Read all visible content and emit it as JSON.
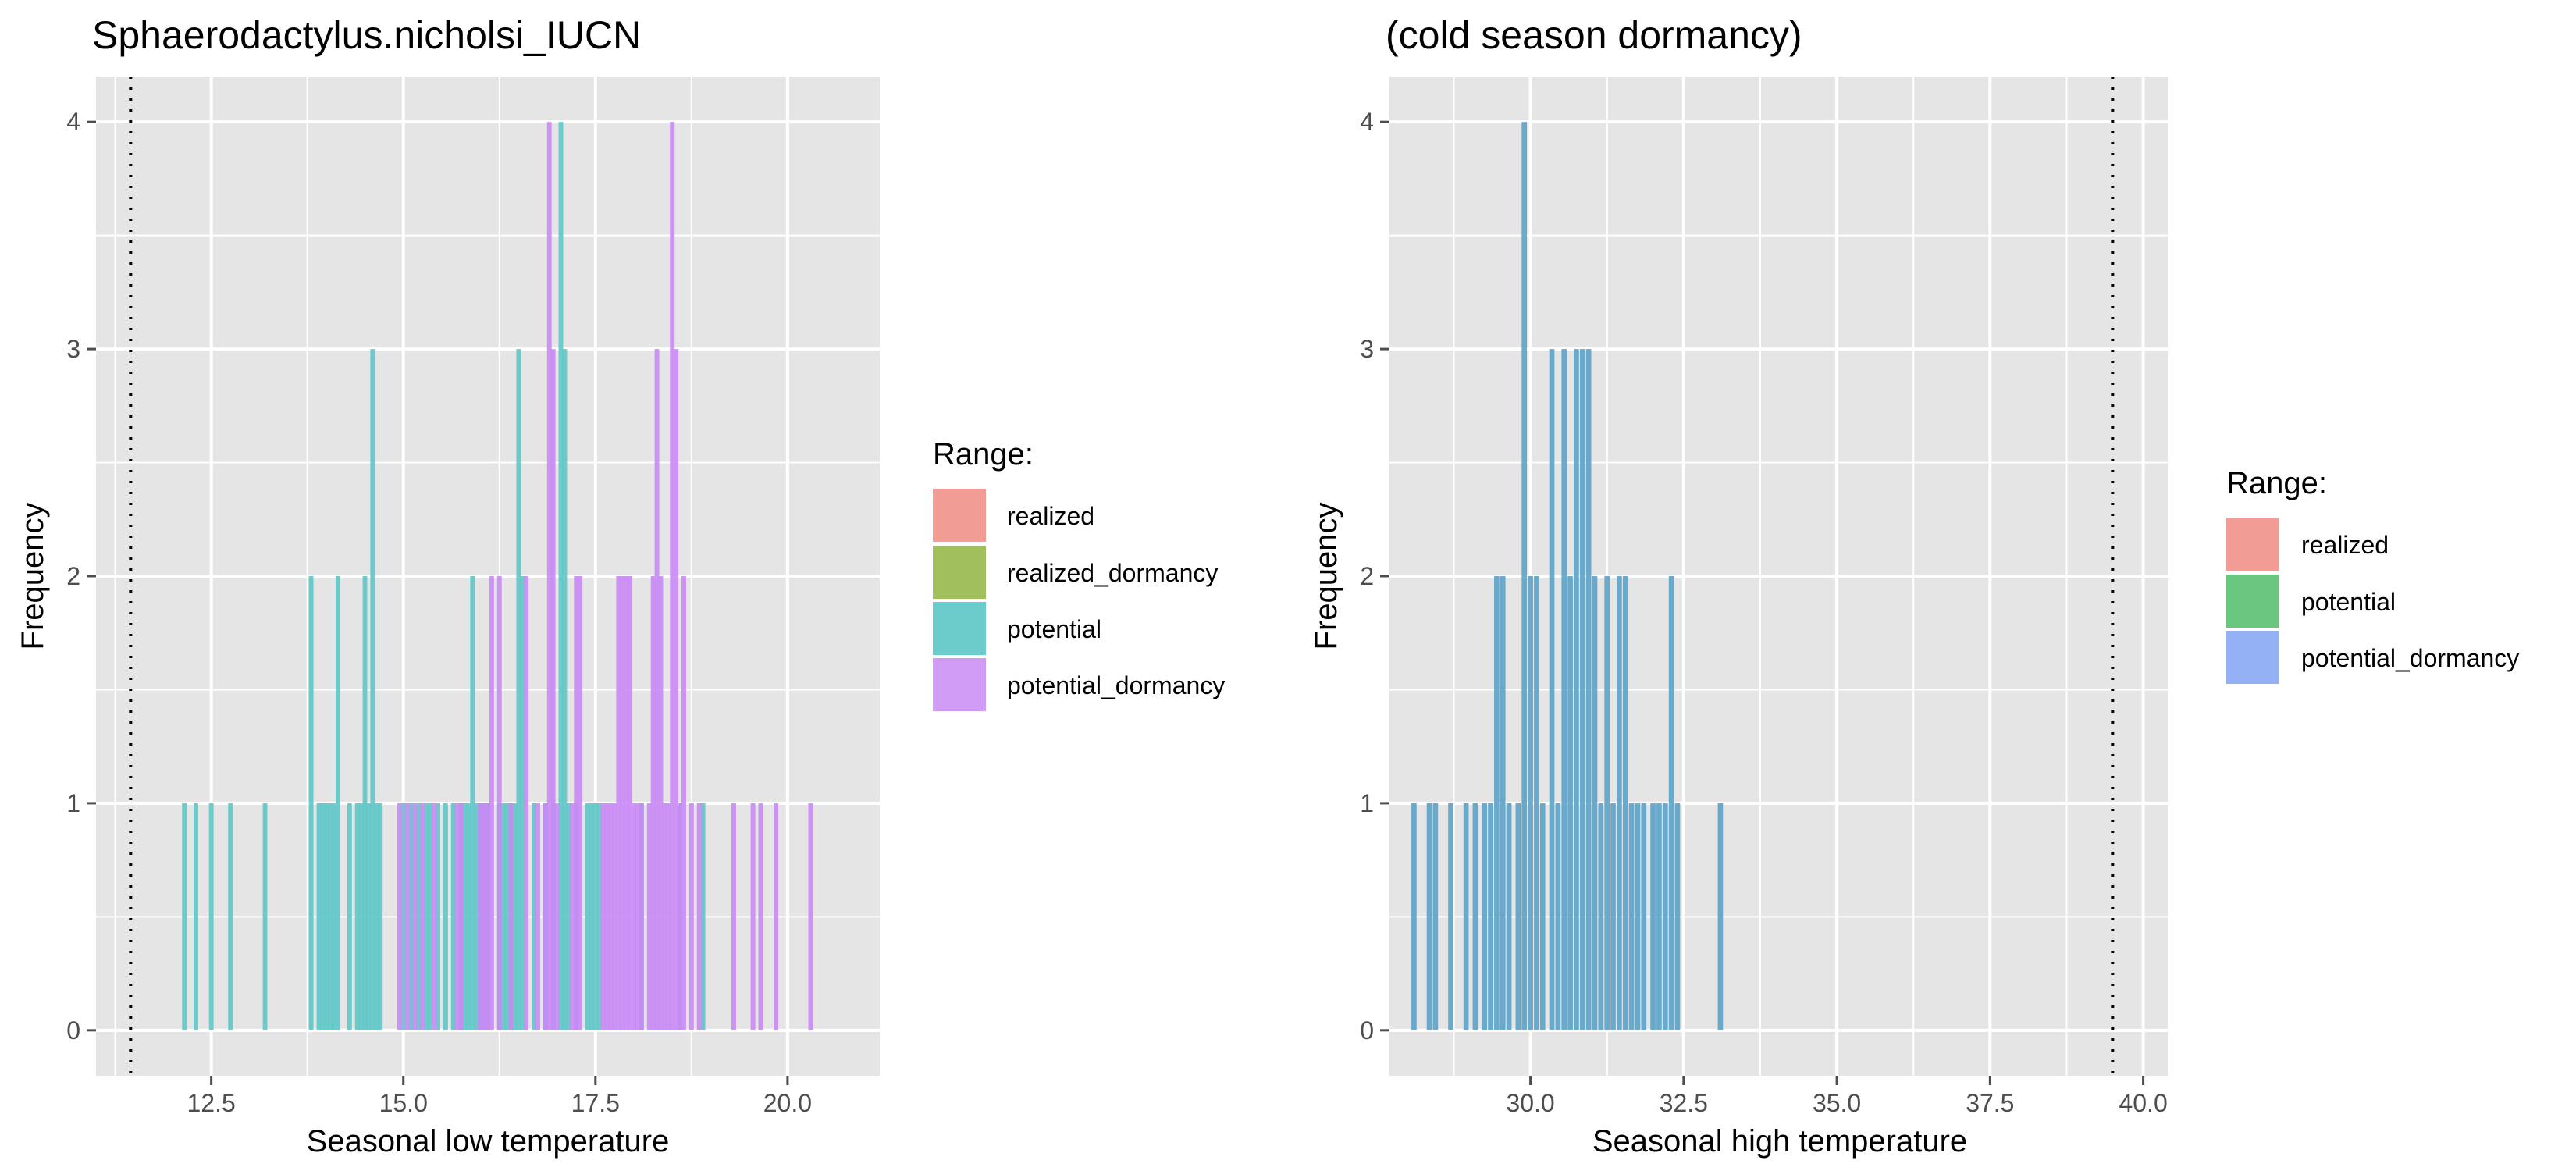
{
  "colors": {
    "panel_bg": "#e5e5e5",
    "grid": "#ffffff",
    "tick": "#4d4d4d",
    "realized": "#f08c87",
    "realized_dormancy": "#93b84f",
    "potential": "#5ec7c7",
    "potential_dormancy": "#c98af5",
    "right_potential": "#5fbf73",
    "right_potential_dormancy": "#8fb0f5",
    "right_bars": "#5ba2c9"
  },
  "chart_data": [
    {
      "type": "bar",
      "title": "Sphaerodactylus.nicholsi_IUCN",
      "xlabel": "Seasonal low temperature",
      "ylabel": "Frequency",
      "xlim": [
        11.0,
        21.2
      ],
      "ylim": [
        -0.2,
        4.2
      ],
      "x_ticks": [
        12.5,
        15.0,
        17.5,
        20.0
      ],
      "x_tick_labels": [
        "12.5",
        "15.0",
        "17.5",
        "20.0"
      ],
      "y_ticks": [
        0,
        1,
        2,
        3,
        4
      ],
      "y_tick_labels": [
        "0",
        "1",
        "2",
        "3",
        "4"
      ],
      "grid": true,
      "bin_width": 0.06,
      "vline": 11.45,
      "legend": {
        "title": "Range:",
        "position": "right",
        "entries": [
          "realized",
          "realized_dormancy",
          "potential",
          "potential_dormancy"
        ]
      },
      "series": [
        {
          "name": "potential",
          "color_key": "potential",
          "x": [
            12.15,
            12.3,
            12.5,
            12.75,
            13.2,
            13.8,
            13.9,
            13.95,
            14.0,
            14.05,
            14.1,
            14.15,
            14.3,
            14.4,
            14.45,
            14.5,
            14.55,
            14.6,
            14.65,
            14.7,
            15.0,
            15.1,
            15.2,
            15.3,
            15.35,
            15.45,
            15.55,
            15.65,
            15.75,
            15.8,
            15.85,
            15.9,
            15.95,
            16.0,
            16.05,
            16.1,
            16.25,
            16.3,
            16.35,
            16.4,
            16.45,
            16.5,
            16.55,
            16.7,
            16.85,
            16.95,
            17.05,
            17.1,
            17.15,
            17.25,
            17.4,
            17.45,
            17.5,
            17.55,
            18.1,
            18.6,
            18.9
          ],
          "values": [
            1,
            1,
            1,
            1,
            1,
            2,
            1,
            1,
            1,
            1,
            1,
            2,
            1,
            1,
            1,
            2,
            1,
            3,
            1,
            1,
            1,
            1,
            1,
            1,
            1,
            1,
            1,
            1,
            1,
            1,
            1,
            2,
            1,
            1,
            1,
            1,
            1,
            1,
            1,
            1,
            1,
            3,
            2,
            1,
            1,
            1,
            4,
            3,
            1,
            1,
            1,
            1,
            1,
            1,
            1,
            1,
            1
          ]
        },
        {
          "name": "potential_dormancy",
          "color_key": "potential_dormancy",
          "x": [
            14.95,
            15.05,
            15.15,
            15.25,
            15.4,
            15.7,
            15.75,
            16.0,
            16.05,
            16.1,
            16.15,
            16.25,
            16.4,
            16.6,
            16.75,
            16.85,
            16.9,
            16.95,
            17.0,
            17.2,
            17.25,
            17.3,
            17.6,
            17.65,
            17.7,
            17.75,
            17.8,
            17.85,
            17.9,
            17.95,
            18.0,
            18.05,
            18.1,
            18.2,
            18.25,
            18.3,
            18.35,
            18.4,
            18.45,
            18.5,
            18.55,
            18.6,
            18.65,
            18.75,
            18.85,
            19.3,
            19.55,
            19.65,
            19.85,
            20.3
          ],
          "values": [
            1,
            1,
            1,
            1,
            1,
            1,
            1,
            1,
            1,
            1,
            2,
            2,
            1,
            2,
            1,
            1,
            4,
            3,
            1,
            1,
            2,
            2,
            1,
            1,
            1,
            1,
            2,
            2,
            2,
            2,
            1,
            1,
            1,
            1,
            2,
            3,
            2,
            1,
            1,
            4,
            3,
            1,
            2,
            1,
            1,
            1,
            1,
            1,
            1,
            1
          ]
        }
      ]
    },
    {
      "type": "bar",
      "title": "(cold season dormancy)",
      "xlabel": "Seasonal high temperature",
      "ylabel": "Frequency",
      "xlim": [
        27.7,
        40.4
      ],
      "ylim": [
        -0.2,
        4.2
      ],
      "x_ticks": [
        30.0,
        32.5,
        35.0,
        37.5,
        40.0
      ],
      "x_tick_labels": [
        "30.0",
        "32.5",
        "35.0",
        "37.5",
        "40.0"
      ],
      "y_ticks": [
        0,
        1,
        2,
        3,
        4
      ],
      "y_tick_labels": [
        "0",
        "1",
        "2",
        "3",
        "4"
      ],
      "grid": true,
      "bin_width": 0.085,
      "vline": 39.5,
      "legend": {
        "title": "Range:",
        "position": "right",
        "entries": [
          "realized",
          "potential",
          "potential_dormancy"
        ]
      },
      "series": [
        {
          "name": "potential_dormancy",
          "color_key": "right_bars",
          "x": [
            28.1,
            28.35,
            28.45,
            28.7,
            28.95,
            29.1,
            29.25,
            29.35,
            29.45,
            29.55,
            29.65,
            29.8,
            29.9,
            30.0,
            30.1,
            30.2,
            30.35,
            30.45,
            30.55,
            30.65,
            30.75,
            30.85,
            30.95,
            31.05,
            31.15,
            31.25,
            31.35,
            31.45,
            31.55,
            31.65,
            31.75,
            31.85,
            32.0,
            32.1,
            32.2,
            32.3,
            32.4,
            33.1
          ],
          "values": [
            1,
            1,
            1,
            1,
            1,
            1,
            1,
            1,
            2,
            2,
            1,
            1,
            4,
            2,
            2,
            1,
            3,
            1,
            3,
            2,
            3,
            3,
            3,
            2,
            1,
            2,
            1,
            2,
            2,
            1,
            1,
            1,
            1,
            1,
            1,
            2,
            1,
            1
          ]
        }
      ]
    }
  ]
}
